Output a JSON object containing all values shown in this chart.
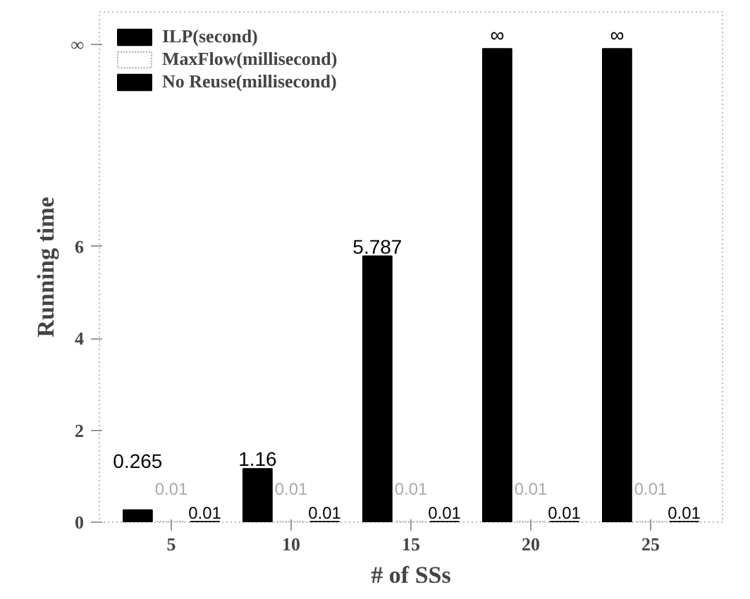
{
  "chart_data": {
    "type": "bar",
    "xlabel": "# of SSs",
    "ylabel": "Running time",
    "categories": [
      "5",
      "10",
      "15",
      "20",
      "25"
    ],
    "series": [
      {
        "name": "ILP(second)",
        "color": "#000000",
        "values": [
          0.265,
          1.16,
          5.787,
          10.3,
          10.3
        ],
        "value_labels": [
          "0.265",
          "1.16",
          "5.787",
          "∞",
          "∞"
        ]
      },
      {
        "name": "MaxFlow(millisecond)",
        "color": "#ffffff",
        "values": [
          0.01,
          0.01,
          0.01,
          0.01,
          0.01
        ],
        "value_labels": [
          "0.01",
          "0.01",
          "0.01",
          "0.01",
          "0.01"
        ]
      },
      {
        "name": "No Reuse(millisecond)",
        "color": "#000000",
        "values": [
          0.01,
          0.01,
          0.01,
          0.01,
          0.01
        ],
        "value_labels": [
          "0.01",
          "0.01",
          "0.01",
          "0.01",
          "0.01"
        ]
      }
    ],
    "ylim": [
      0,
      11.1
    ],
    "yticks": [
      0,
      2,
      4,
      6,
      {
        "value": 10.4,
        "label": "∞"
      }
    ],
    "legend": "top left",
    "grid": false
  }
}
